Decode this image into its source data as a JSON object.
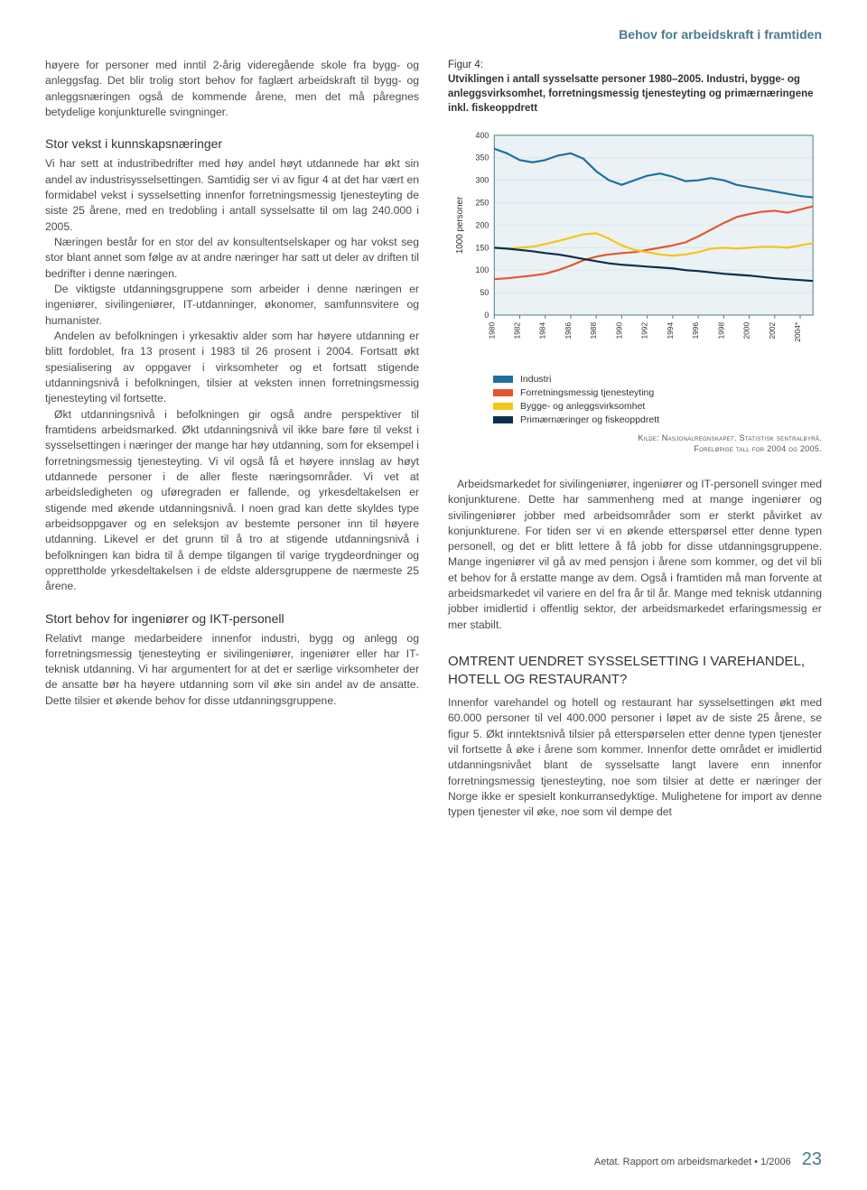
{
  "header": {
    "title": "Behov for arbeidskraft i framtiden"
  },
  "left_intro": "høyere for personer med inntil 2-årig videregående skole fra bygg- og anleggsfag.\n  Det blir trolig stort behov for faglært arbeidskraft til bygg- og anleggsnæringen også de kommende årene, men det må påregnes betydelige konjunkturelle svingninger.",
  "heading_kunnskap": "Stor vekst i kunnskapsnæringer",
  "para_kunnskap_1": "Vi har sett at industribedrifter med høy andel høyt utdannede har økt sin andel av industrisysselsettingen. Samtidig ser vi av figur 4 at det har vært en formidabel vekst i sysselsetting innenfor forretningsmessig tjenesteyting de siste 25 årene, med en tredobling i antall sysselsatte til om lag 240.000 i 2005.",
  "para_kunnskap_2": "Næringen består for en stor del av konsultentselskaper og har vokst seg stor blant annet som følge av at andre næringer har satt ut deler av driften til bedrifter i denne næringen.",
  "para_kunnskap_3": "De viktigste utdanningsgruppene som arbeider i denne næringen er ingeniører, sivilingeniører, IT-utdanninger, økonomer, samfunnsvitere og humanister.",
  "para_kunnskap_4": "Andelen av befolkningen i yrkesaktiv alder som har høyere utdanning er blitt fordoblet, fra 13 prosent i 1983 til 26 prosent i 2004. Fortsatt økt spesialisering av oppgaver i virksomheter og et fortsatt stigende utdanningsnivå i befolkningen, tilsier at veksten innen forretningsmessig tjenesteyting vil fortsette.",
  "para_kunnskap_5": "Økt utdanningsnivå i befolkningen gir også andre perspektiver til framtidens arbeidsmarked. Økt utdanningsnivå vil ikke bare føre til vekst i sysselsettingen i næringer der mange har høy utdanning, som for eksempel i forretningsmessig tjenesteyting. Vi vil også få et høyere innslag av høyt utdannede personer i de aller fleste næringsområder. Vi vet at arbeidsledigheten og uføregraden er fallende, og yrkesdeltakelsen er stigende med økende utdanningsnivå. I noen grad kan dette skyldes type arbeidsoppgaver og en seleksjon av bestemte personer inn til høyere utdanning. Likevel er det grunn til å tro at stigende utdanningsnivå i befolkningen kan bidra til å dempe tilgangen til varige trygdeordninger og opprettholde yrkesdeltakelsen i de eldste aldersgruppene de nærmeste 25 årene.",
  "heading_ikt": "Stort behov for ingeniører og IKT-personell",
  "para_ikt": "Relativt mange medarbeidere innenfor industri, bygg og anlegg og forretningsmessig tjenesteyting er sivilingeniører, ingeniører eller har IT-teknisk utdanning. Vi har argumentert for at det er særlige virksomheter der de ansatte bør ha høyere utdanning som vil øke sin andel av de ansatte. Dette tilsier et økende behov for disse utdanningsgruppene.",
  "figure": {
    "label": "Figur 4:",
    "caption": "Utviklingen i antall sysselsatte personer 1980–2005. Industri, bygge- og anleggsvirksomhet, forretningsmessig tjenesteyting og primærnæringene inkl. fiskeoppdrett"
  },
  "chart": {
    "type": "line",
    "ylabel": "1000 personer",
    "ylim": [
      0,
      400
    ],
    "ytick_step": 50,
    "yticks": [
      0,
      50,
      100,
      150,
      200,
      250,
      300,
      350,
      400
    ],
    "xticks": [
      "1980",
      "1982",
      "1984",
      "1986",
      "1988",
      "1990",
      "1992",
      "1994",
      "1996",
      "1998",
      "2000",
      "2002",
      "2004*"
    ],
    "background_color": "#ffffff",
    "grid_color": "#d9e6ec",
    "plot_bg": "#eaf2f5",
    "axis_color": "#4a7a8c",
    "line_width": 2.2,
    "series": [
      {
        "name": "Industri",
        "color": "#1f6f9e",
        "values": [
          370,
          360,
          345,
          340,
          345,
          355,
          360,
          348,
          320,
          300,
          290,
          300,
          310,
          315,
          308,
          298,
          300,
          305,
          300,
          290,
          285,
          280,
          275,
          270,
          265,
          262
        ]
      },
      {
        "name": "Forretningsmessig tjenesteyting",
        "color": "#e4572e",
        "values": [
          80,
          82,
          85,
          88,
          92,
          100,
          110,
          122,
          130,
          135,
          138,
          140,
          145,
          150,
          155,
          162,
          175,
          190,
          205,
          218,
          225,
          230,
          232,
          228,
          235,
          242
        ]
      },
      {
        "name": "Bygge- og anleggsvirksomhet",
        "color": "#f5c518",
        "values": [
          150,
          148,
          150,
          152,
          158,
          165,
          172,
          180,
          182,
          170,
          155,
          145,
          140,
          135,
          132,
          135,
          140,
          148,
          150,
          148,
          150,
          152,
          152,
          150,
          155,
          160
        ]
      },
      {
        "name": "Primærnæringer og fiskeoppdrett",
        "color": "#0b2f4a",
        "values": [
          150,
          148,
          145,
          142,
          138,
          135,
          130,
          125,
          120,
          115,
          112,
          110,
          108,
          106,
          104,
          100,
          98,
          95,
          92,
          90,
          88,
          85,
          82,
          80,
          78,
          76
        ]
      }
    ]
  },
  "legend_items": [
    {
      "label": "Industri",
      "color": "#1f6f9e"
    },
    {
      "label": "Forretningsmessig tjenesteyting",
      "color": "#e4572e"
    },
    {
      "label": "Bygge- og anleggsvirksomhet",
      "color": "#f5c518"
    },
    {
      "label": "Primærnæringer og fiskeoppdrett",
      "color": "#0b2f4a"
    }
  ],
  "source_line1": "Kilde: Nasjonalregnskapet. Statistisk sentralbyrå.",
  "source_line2": "Foreløpige tall for 2004 og 2005.",
  "para_right_1": "Arbeidsmarkedet for sivilingeniører, ingeniører og IT-personell svinger med konjunkturene. Dette har sammenheng med at mange ingeniører og sivilingeniører jobber med arbeidsområder som er sterkt påvirket av konjunkturene. For tiden ser vi en økende etterspørsel etter denne typen personell, og det er blitt lettere å få jobb for disse utdanningsgruppene. Mange ingeniører vil gå av med pensjon i årene som kommer, og det vil bli et behov for å erstatte mange av dem. Også i framtiden må man forvente at arbeidsmarkedet vil variere en del fra år til år. Mange med teknisk utdanning jobber imidlertid i offentlig sektor, der arbeidsmarkedet erfaringsmessig er mer stabilt.",
  "heading_varehandel": "OMTRENT UENDRET SYSSELSETTING I VAREHANDEL, HOTELL OG RESTAURANT?",
  "para_varehandel": "Innenfor varehandel og hotell og restaurant har sysselsettingen økt med 60.000 personer til vel 400.000 personer i løpet av de siste 25 årene, se figur 5. Økt inntektsnivå tilsier på etterspørselen etter denne typen tjenester vil fortsette å øke i årene som kommer. Innenfor dette området er imidlertid utdanningsnivået blant de sysselsatte langt lavere enn innenfor forretningsmessig tjenesteyting, noe som tilsier at dette er næringer der Norge ikke er spesielt konkurransedyktige. Mulighetene for import av denne typen tjenester vil øke, noe som vil dempe det",
  "footer": {
    "text": "Aetat.  Rapport om arbeidsmarkedet • 1/2006",
    "page": "23"
  }
}
